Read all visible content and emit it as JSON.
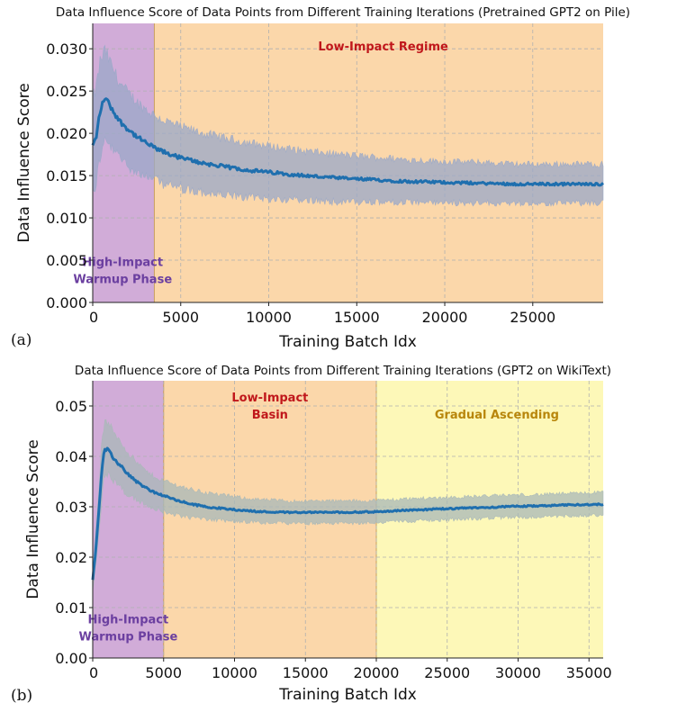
{
  "chart_data": [
    {
      "type": "line",
      "panel_label": "(a)",
      "title": "Data Influence Score of Data Points from Different Training Iterations (Pretrained GPT2 on Pile)",
      "xlabel": "Training Batch Idx",
      "ylabel": "Data Influence Score",
      "xlim": [
        0,
        29000
      ],
      "ylim": [
        0,
        0.033
      ],
      "xticks": [
        0,
        5000,
        10000,
        15000,
        20000,
        25000
      ],
      "xtick_labels": [
        "0",
        "5000",
        "10000",
        "15000",
        "20000",
        "25000"
      ],
      "yticks": [
        0,
        0.005,
        0.01,
        0.015,
        0.02,
        0.025,
        0.03
      ],
      "ytick_labels": [
        "0.000",
        "0.005",
        "0.010",
        "0.015",
        "0.020",
        "0.025",
        "0.030"
      ],
      "grid": true,
      "regions": [
        {
          "label_lines": [
            "High-Impact",
            "Warmup Phase"
          ],
          "x_start": 0,
          "x_end": 3500,
          "color": "#cfa8d6",
          "label_color": "#6b3fa0",
          "label_x": 1700,
          "label_y": 0.0023
        },
        {
          "label_lines": [
            "Low-Impact Regime"
          ],
          "x_start": 3500,
          "x_end": 29000,
          "color": "#fbd5a5",
          "label_color": "#c0171b",
          "label_x": 16500,
          "label_y": 0.0298
        }
      ],
      "series": [
        {
          "color": "#1f6fae",
          "band_color": "#9aa8c8",
          "x": [
            0,
            200,
            400,
            700,
            1000,
            1500,
            2000,
            2500,
            3000,
            3500,
            4000,
            5000,
            6000,
            7000,
            8000,
            9000,
            10000,
            12000,
            14000,
            16000,
            18000,
            20000,
            22000,
            24000,
            26000,
            28000,
            29000
          ],
          "y": [
            0.0185,
            0.0195,
            0.0225,
            0.0243,
            0.0232,
            0.0215,
            0.0205,
            0.0196,
            0.0189,
            0.0183,
            0.0178,
            0.0171,
            0.0166,
            0.0162,
            0.0159,
            0.0156,
            0.0154,
            0.015,
            0.0147,
            0.0145,
            0.0143,
            0.0142,
            0.0141,
            0.014,
            0.014,
            0.014,
            0.014
          ],
          "lower": [
            0.0135,
            0.0145,
            0.0175,
            0.0195,
            0.0187,
            0.0175,
            0.0165,
            0.0158,
            0.0152,
            0.0147,
            0.0143,
            0.0137,
            0.0133,
            0.013,
            0.0128,
            0.0126,
            0.0125,
            0.0123,
            0.0121,
            0.012,
            0.012,
            0.012,
            0.0119,
            0.0119,
            0.0119,
            0.0119,
            0.0119
          ],
          "upper": [
            0.0235,
            0.025,
            0.028,
            0.0295,
            0.028,
            0.0258,
            0.0245,
            0.0235,
            0.0226,
            0.0219,
            0.0213,
            0.0205,
            0.0199,
            0.0194,
            0.019,
            0.0186,
            0.0183,
            0.0177,
            0.0173,
            0.017,
            0.0167,
            0.0165,
            0.0164,
            0.0162,
            0.0162,
            0.0162,
            0.0162
          ]
        }
      ]
    },
    {
      "type": "line",
      "panel_label": "(b)",
      "title": "Data Influence Score of Data Points from Different Training Iterations (GPT2 on WikiText)",
      "xlabel": "Training Batch Idx",
      "ylabel": "Data Influence Score",
      "xlim": [
        0,
        36000
      ],
      "ylim": [
        0,
        0.055
      ],
      "xticks": [
        0,
        5000,
        10000,
        15000,
        20000,
        25000,
        30000,
        35000
      ],
      "xtick_labels": [
        "0",
        "5000",
        "10000",
        "15000",
        "20000",
        "25000",
        "30000",
        "35000"
      ],
      "yticks": [
        0,
        0.01,
        0.02,
        0.03,
        0.04,
        0.05
      ],
      "ytick_labels": [
        "0.00",
        "0.01",
        "0.02",
        "0.03",
        "0.04",
        "0.05"
      ],
      "grid": true,
      "regions": [
        {
          "label_lines": [
            "High-Impact",
            "Warmup Phase"
          ],
          "x_start": 0,
          "x_end": 5000,
          "color": "#cfa8d6",
          "label_color": "#6b3fa0",
          "label_x": 2500,
          "label_y": 0.0035
        },
        {
          "label_lines": [
            "Low-Impact",
            "Basin"
          ],
          "x_start": 5000,
          "x_end": 20000,
          "color": "#fbd5a5",
          "label_color": "#c0171b",
          "label_x": 12500,
          "label_y": 0.0475
        },
        {
          "label_lines": [
            "Gradual Ascending"
          ],
          "x_start": 20000,
          "x_end": 36000,
          "color": "#fdf8b4",
          "label_color": "#b8860b",
          "label_x": 28500,
          "label_y": 0.0475
        }
      ],
      "series": [
        {
          "color": "#1f6fae",
          "band_color": "#a8b8b8",
          "x": [
            0,
            200,
            400,
            600,
            800,
            1000,
            1500,
            2000,
            2500,
            3000,
            3500,
            4000,
            4500,
            5000,
            6000,
            7000,
            8000,
            10000,
            12000,
            14000,
            16000,
            18000,
            20000,
            22000,
            24000,
            26000,
            28000,
            30000,
            32000,
            34000,
            36000
          ],
          "y": [
            0.0155,
            0.021,
            0.028,
            0.036,
            0.041,
            0.0415,
            0.0395,
            0.038,
            0.0365,
            0.0352,
            0.0342,
            0.0333,
            0.0327,
            0.0322,
            0.0312,
            0.0305,
            0.03,
            0.0294,
            0.029,
            0.0289,
            0.0289,
            0.0289,
            0.029,
            0.0293,
            0.0295,
            0.0297,
            0.0299,
            0.0301,
            0.0302,
            0.0304,
            0.0305
          ],
          "lower": [
            0.0135,
            0.018,
            0.024,
            0.031,
            0.036,
            0.037,
            0.0355,
            0.034,
            0.0328,
            0.0318,
            0.031,
            0.0303,
            0.0298,
            0.0293,
            0.0285,
            0.028,
            0.0277,
            0.0273,
            0.027,
            0.0269,
            0.0269,
            0.0269,
            0.027,
            0.0273,
            0.0275,
            0.0277,
            0.0279,
            0.0281,
            0.0282,
            0.0284,
            0.0285
          ],
          "upper": [
            0.0175,
            0.024,
            0.032,
            0.041,
            0.046,
            0.0465,
            0.0445,
            0.0425,
            0.0405,
            0.0388,
            0.0375,
            0.0363,
            0.0356,
            0.035,
            0.034,
            0.0332,
            0.0326,
            0.0318,
            0.0312,
            0.031,
            0.031,
            0.031,
            0.0311,
            0.0314,
            0.0316,
            0.0318,
            0.032,
            0.0322,
            0.0323,
            0.0325,
            0.0327
          ]
        }
      ]
    }
  ]
}
